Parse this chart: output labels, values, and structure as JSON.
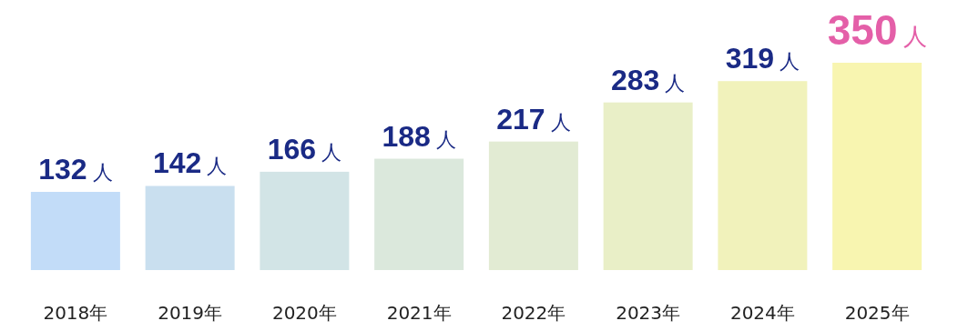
{
  "chart_data": {
    "type": "bar",
    "categories": [
      "2018年",
      "2019年",
      "2020年",
      "2021年",
      "2022年",
      "2023年",
      "2024年",
      "2025年"
    ],
    "values": [
      132,
      142,
      166,
      188,
      217,
      283,
      319,
      350
    ],
    "colors": [
      "#c2dcf8",
      "#c9dfef",
      "#d2e4e6",
      "#dbe8dc",
      "#e2ebd3",
      "#e9efc7",
      "#f1f2bb",
      "#f8f5b0"
    ],
    "value_labels": [
      "132人",
      "142人",
      "166人",
      "188人",
      "217人",
      "283人",
      "319人",
      "350人"
    ]
  }
}
